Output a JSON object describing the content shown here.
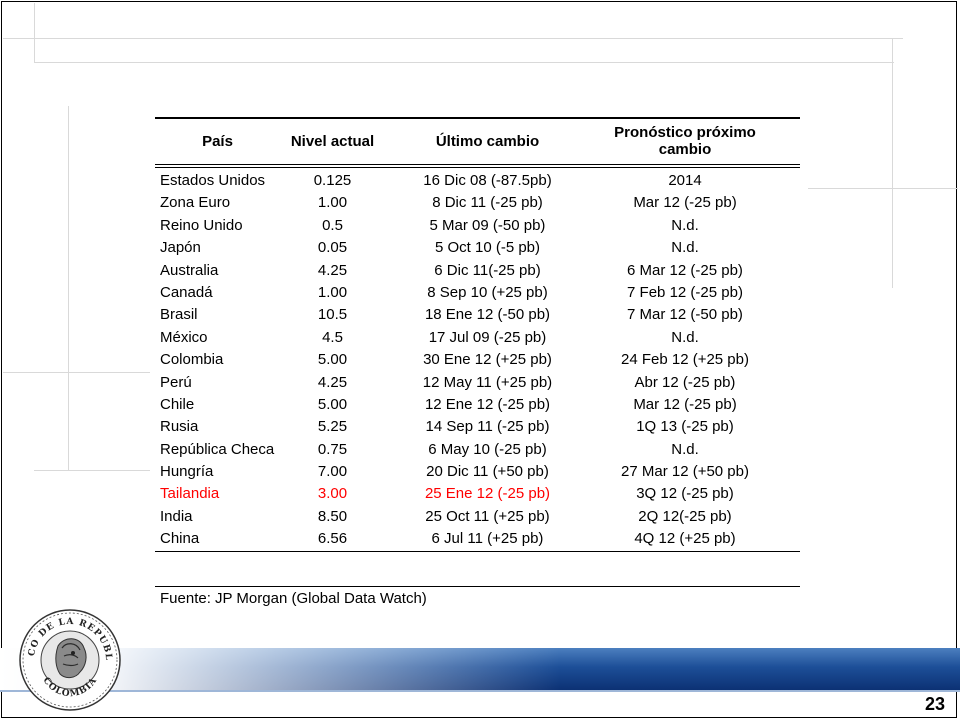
{
  "table": {
    "headers": {
      "pais": "País",
      "nivel_actual": "Nivel actual",
      "ultimo_cambio": "Último cambio",
      "pronostico": "Pronóstico próximo cambio"
    },
    "rows": [
      {
        "pais": "Estados Unidos",
        "nivel": "0.125",
        "ultimo": "16 Dic 08 (-87.5pb)",
        "pronostico": "2014",
        "highlight": false
      },
      {
        "pais": "Zona Euro",
        "nivel": "1.00",
        "ultimo": "8 Dic 11 (-25 pb)",
        "pronostico": "Mar 12 (-25 pb)",
        "highlight": false
      },
      {
        "pais": "Reino Unido",
        "nivel": "0.5",
        "ultimo": "5 Mar 09 (-50 pb)",
        "pronostico": "N.d.",
        "highlight": false
      },
      {
        "pais": "Japón",
        "nivel": "0.05",
        "ultimo": "5 Oct 10 (-5 pb)",
        "pronostico": "N.d.",
        "highlight": false
      },
      {
        "pais": "Australia",
        "nivel": "4.25",
        "ultimo": "6 Dic 11(-25 pb)",
        "pronostico": "6 Mar 12 (-25 pb)",
        "highlight": false
      },
      {
        "pais": "Canadá",
        "nivel": "1.00",
        "ultimo": "8 Sep 10 (+25 pb)",
        "pronostico": "7 Feb 12 (-25 pb)",
        "highlight": false
      },
      {
        "pais": "Brasil",
        "nivel": "10.5",
        "ultimo": "18 Ene 12 (-50 pb)",
        "pronostico": "7 Mar 12 (-50 pb)",
        "highlight": false
      },
      {
        "pais": "México",
        "nivel": "4.5",
        "ultimo": "17 Jul 09 (-25 pb)",
        "pronostico": "N.d.",
        "highlight": false
      },
      {
        "pais": "Colombia",
        "nivel": "5.00",
        "ultimo": "30 Ene 12 (+25 pb)",
        "pronostico": "24 Feb 12 (+25 pb)",
        "highlight": false
      },
      {
        "pais": "Perú",
        "nivel": "4.25",
        "ultimo": "12 May 11 (+25 pb)",
        "pronostico": "Abr 12 (-25 pb)",
        "highlight": false
      },
      {
        "pais": "Chile",
        "nivel": "5.00",
        "ultimo": "12 Ene 12 (-25 pb)",
        "pronostico": "Mar 12 (-25 pb)",
        "highlight": false
      },
      {
        "pais": "Rusia",
        "nivel": "5.25",
        "ultimo": "14 Sep 11 (-25 pb)",
        "pronostico": "1Q 13 (-25 pb)",
        "highlight": false
      },
      {
        "pais": "República Checa",
        "nivel": "0.75",
        "ultimo": "6 May 10 (-25 pb)",
        "pronostico": "N.d.",
        "highlight": false
      },
      {
        "pais": "Hungría",
        "nivel": "7.00",
        "ultimo": "20 Dic 11 (+50 pb)",
        "pronostico": "27 Mar 12 (+50 pb)",
        "highlight": false
      },
      {
        "pais": "Tailandia",
        "nivel": "3.00",
        "ultimo": "25 Ene 12 (-25 pb)",
        "pronostico": "3Q 12 (-25 pb)",
        "highlight": true
      },
      {
        "pais": "India",
        "nivel": "8.50",
        "ultimo": "25 Oct 11 (+25 pb)",
        "pronostico": "2Q 12(-25 pb)",
        "highlight": false
      },
      {
        "pais": "China",
        "nivel": "6.56",
        "ultimo": "6  Jul 11 (+25 pb)",
        "pronostico": "4Q 12 (+25 pb)",
        "highlight": false
      }
    ],
    "source": "Fuente: JP Morgan (Global Data Watch)"
  },
  "footer": {
    "page_number": "23",
    "seal_icon": "banco-de-la-republica-seal-icon"
  },
  "colors": {
    "highlight": "#ff0000",
    "band_dark": "#0c3174",
    "band_mid": "#1d4f98"
  }
}
